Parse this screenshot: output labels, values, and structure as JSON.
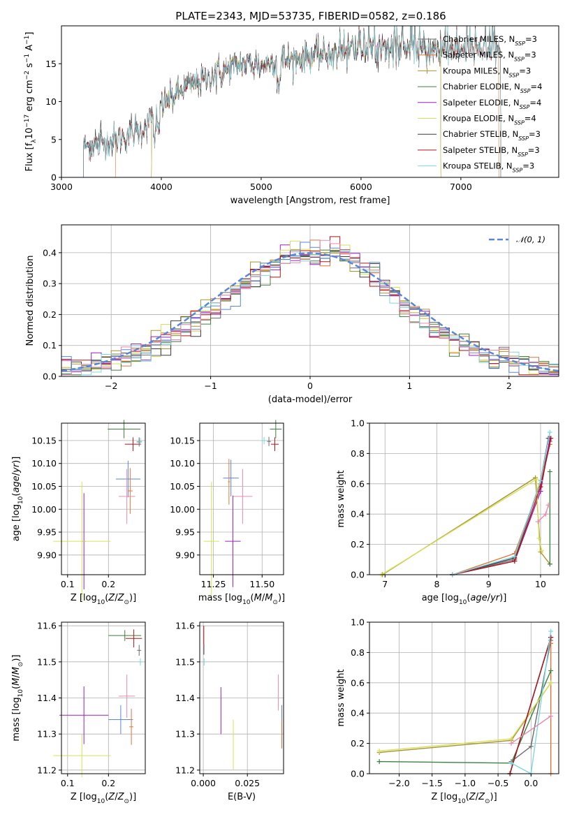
{
  "figure_title": "PLATE=2343, MJD=53735, FIBERID=0582, z=0.186",
  "colors": {
    "Chabrier MILES": "#6b6b6b",
    "Salpeter MILES": "#e0733a",
    "Kroupa MILES": "#a8922e",
    "Chabrier ELODIE": "#3f7f3f",
    "Salpeter ELODIE": "#9a1fbf",
    "Kroupa ELODIE": "#d6e05a",
    "Chabrier STELIB": "#3a3a3a",
    "Salpeter STELIB": "#b01515",
    "Kroupa STELIB": "#7fd6e0",
    "Blue extra": "#5b86d6",
    "Pink extra": "#e88ab0",
    "Normal": "#5b86d6"
  },
  "chart_data": [
    {
      "id": "spectrum",
      "type": "line",
      "title": "PLATE=2343, MJD=53735, FIBERID=0582, z=0.186",
      "xlabel": "wavelength [Angstrom, rest frame]",
      "ylabel": "Flux [f_λ 10^-17 erg cm^-2 s^-1 A^-1]",
      "xlim": [
        3000,
        7980
      ],
      "ylim": [
        0,
        20
      ],
      "xticks": [
        "3000",
        "4000",
        "5000",
        "6000",
        "7000"
      ],
      "yticks": [
        "0",
        "5",
        "10",
        "15"
      ],
      "grid": false,
      "legend": "top-right",
      "legend_entries": [
        "Chabrier MILES, N_SSP=3",
        "Salpeter MILES, N_SSP=3",
        "Kroupa MILES, N_SSP=3",
        "Chabrier ELODIE, N_SSP=4",
        "Salpeter ELODIE, N_SSP=4",
        "Kroupa ELODIE, N_SSP=4",
        "Chabrier STELIB, N_SSP=3",
        "Salpeter STELIB, N_SSP=3",
        "Kroupa STELIB, N_SSP=3"
      ],
      "continuum_x": [
        3220,
        3500,
        3800,
        4000,
        4200,
        4400,
        4600,
        4800,
        5000,
        5200,
        5400,
        5600,
        5800,
        6000,
        6200,
        6400,
        6600,
        6800,
        7000,
        7200,
        7400
      ],
      "continuum_y": [
        4.0,
        4.8,
        6.2,
        9.5,
        11.5,
        12.8,
        14.0,
        15.0,
        14.8,
        15.5,
        15.8,
        16.2,
        16.8,
        17.0,
        17.2,
        17.0,
        16.8,
        16.8,
        16.8,
        16.9,
        16.8
      ]
    },
    {
      "id": "residuals",
      "type": "bar",
      "xlabel": "(data-model)/error",
      "ylabel": "Normed distribution",
      "xlim": [
        -2.5,
        2.5
      ],
      "ylim": [
        0,
        0.49
      ],
      "xticks": [
        "−2",
        "−1",
        "0",
        "1",
        "2"
      ],
      "yticks": [
        "0.0",
        "0.1",
        "0.2",
        "0.3",
        "0.4"
      ],
      "grid": true,
      "legend": "top-right",
      "legend_entries": [
        "𝒩(0, 1)"
      ],
      "bin_width": 0.1
    },
    {
      "id": "age-vs-Z",
      "type": "scatter",
      "xlabel": "Z [log10(Z/Z⊙)]",
      "ylabel": "age [log10(age/yr)]",
      "xlim": [
        0.085,
        0.29
      ],
      "ylim": [
        9.857,
        10.188
      ],
      "xticks": [
        "0.1",
        "0.2"
      ],
      "yticks": [
        "9.90",
        "9.95",
        "10.00",
        "10.05",
        "10.10",
        "10.15"
      ],
      "grid": true,
      "points": [
        {
          "series": "Chabrier ELODIE",
          "x": 0.238,
          "y": 10.175,
          "xerr": 0.04,
          "yerr": 0.02
        },
        {
          "series": "Salpeter STELIB",
          "x": 0.26,
          "y": 10.142,
          "xerr": 0.02,
          "yerr": 0.015
        },
        {
          "series": "Chabrier MILES",
          "x": 0.275,
          "y": 10.147,
          "xerr": 0.006,
          "yerr": 0.01
        },
        {
          "series": "Kroupa STELIB",
          "x": 0.278,
          "y": 10.148,
          "xerr": 0.004,
          "yerr": 0.008
        },
        {
          "series": "Blue extra",
          "x": 0.248,
          "y": 10.066,
          "xerr": 0.03,
          "yerr": 0.04
        },
        {
          "series": "Salpeter MILES",
          "x": 0.253,
          "y": 10.04,
          "xerr": 0.006,
          "yerr": 0.05
        },
        {
          "series": "Pink extra",
          "x": 0.245,
          "y": 10.028,
          "xerr": 0.02,
          "yerr": 0.06
        },
        {
          "series": "Salpeter ELODIE",
          "x": 0.14,
          "y": 9.93,
          "xerr": 0.005,
          "yerr": 0.105
        },
        {
          "series": "Kroupa ELODIE",
          "x": 0.135,
          "y": 9.93,
          "xerr": 0.07,
          "yerr": 0.13
        }
      ]
    },
    {
      "id": "age-vs-mass",
      "type": "scatter",
      "xlabel": "mass [log10(M/M⊙)]",
      "ylabel": "",
      "xlim": [
        11.18,
        11.61
      ],
      "ylim": [
        9.857,
        10.188
      ],
      "xticks": [
        "11.25",
        "11.50"
      ],
      "yticks": [
        "9.90",
        "9.95",
        "10.00",
        "10.05",
        "10.10",
        "10.15"
      ],
      "grid": true,
      "points": [
        {
          "series": "Chabrier ELODIE",
          "x": 11.57,
          "y": 10.175,
          "xerr": 0.03,
          "yerr": 0.02
        },
        {
          "series": "Salpeter STELIB",
          "x": 11.565,
          "y": 10.142,
          "xerr": 0.02,
          "yerr": 0.015
        },
        {
          "series": "Chabrier MILES",
          "x": 11.535,
          "y": 10.148,
          "xerr": 0.01,
          "yerr": 0.01
        },
        {
          "series": "Kroupa STELIB",
          "x": 11.51,
          "y": 10.15,
          "xerr": 0.015,
          "yerr": 0.008
        },
        {
          "series": "Blue extra",
          "x": 11.34,
          "y": 10.068,
          "xerr": 0.04,
          "yerr": 0.04
        },
        {
          "series": "Salpeter MILES",
          "x": 11.33,
          "y": 10.06,
          "xerr": 0.005,
          "yerr": 0.05
        },
        {
          "series": "Pink extra",
          "x": 11.4,
          "y": 10.028,
          "xerr": 0.05,
          "yerr": 0.06
        },
        {
          "series": "Salpeter ELODIE",
          "x": 11.35,
          "y": 9.93,
          "xerr": 0.04,
          "yerr": 0.1
        },
        {
          "series": "Kroupa ELODIE",
          "x": 11.24,
          "y": 9.93,
          "xerr": 0.04,
          "yerr": 0.13
        }
      ]
    },
    {
      "id": "mass-weight-vs-age",
      "type": "line",
      "xlabel": "age [log10(age/yr)]",
      "ylabel": "mass weight",
      "xlim": [
        6.7,
        10.35
      ],
      "ylim": [
        0,
        1.0
      ],
      "xticks": [
        "7",
        "8",
        "9",
        "10"
      ],
      "yticks": [
        "0.0",
        "0.2",
        "0.4",
        "0.6",
        "0.8",
        "1.0"
      ],
      "grid": true,
      "series": [
        {
          "name": "Chabrier MILES",
          "x": [
            8.3,
            9.5,
            10.0,
            10.18
          ],
          "y": [
            0.0,
            0.1,
            0.62,
            0.88
          ]
        },
        {
          "name": "Salpeter MILES",
          "x": [
            8.3,
            9.5,
            10.0,
            10.18
          ],
          "y": [
            0.0,
            0.14,
            0.6,
            0.86
          ]
        },
        {
          "name": "Kroupa MILES",
          "x": [
            6.95,
            9.9,
            10.0,
            10.18
          ],
          "y": [
            0.0,
            0.64,
            0.15,
            0.07
          ]
        },
        {
          "name": "Chabrier ELODIE",
          "x": [
            10.18,
            10.18
          ],
          "y": [
            0.07,
            0.68
          ]
        },
        {
          "name": "Salpeter ELODIE",
          "x": [
            8.3,
            9.5,
            10.0,
            10.18
          ],
          "y": [
            0.0,
            0.09,
            0.55,
            0.9
          ]
        },
        {
          "name": "Kroupa ELODIE",
          "x": [
            6.93,
            9.92,
            9.97,
            10.02
          ],
          "y": [
            0.0,
            0.63,
            0.24,
            0.16
          ]
        },
        {
          "name": "Chabrier STELIB",
          "x": [
            8.3,
            9.5,
            10.0,
            10.15
          ],
          "y": [
            0.0,
            0.11,
            0.62,
            0.9
          ]
        },
        {
          "name": "Salpeter STELIB",
          "x": [
            8.3,
            9.5,
            10.0,
            10.2
          ],
          "y": [
            0.0,
            0.09,
            0.58,
            0.9
          ]
        },
        {
          "name": "Kroupa STELIB",
          "x": [
            8.3,
            9.5,
            10.0,
            10.18
          ],
          "y": [
            0.0,
            0.12,
            0.62,
            0.94
          ]
        },
        {
          "name": "Pink extra",
          "x": [
            9.95,
            10.1,
            10.15
          ],
          "y": [
            0.35,
            0.4,
            0.46
          ]
        }
      ]
    },
    {
      "id": "mass-vs-Z",
      "type": "scatter",
      "xlabel": "Z [log10(Z/Z⊙)]",
      "ylabel": "mass [log10(M/M⊙)]",
      "xlim": [
        0.085,
        0.29
      ],
      "ylim": [
        11.19,
        11.61
      ],
      "xticks": [
        "0.1",
        "0.2"
      ],
      "yticks": [
        "11.2",
        "11.3",
        "11.4",
        "11.5",
        "11.6"
      ],
      "grid": true,
      "points": [
        {
          "series": "Chabrier ELODIE",
          "x": 0.24,
          "y": 11.573,
          "xerr": 0.04,
          "yerr": 0.015
        },
        {
          "series": "Salpeter STELIB",
          "x": 0.262,
          "y": 11.565,
          "xerr": 0.02,
          "yerr": 0.025
        },
        {
          "series": "Chabrier MILES",
          "x": 0.275,
          "y": 11.532,
          "xerr": 0.005,
          "yerr": 0.015
        },
        {
          "series": "Kroupa STELIB",
          "x": 0.278,
          "y": 11.5,
          "xerr": 0.004,
          "yerr": 0.01
        },
        {
          "series": "Pink extra",
          "x": 0.245,
          "y": 11.405,
          "xerr": 0.02,
          "yerr": 0.06
        },
        {
          "series": "Blue extra",
          "x": 0.23,
          "y": 11.34,
          "xerr": 0.03,
          "yerr": 0.04
        },
        {
          "series": "Salpeter MILES",
          "x": 0.256,
          "y": 11.32,
          "xerr": 0.005,
          "yerr": 0.05
        },
        {
          "series": "Salpeter ELODIE",
          "x": 0.14,
          "y": 11.352,
          "xerr": 0.06,
          "yerr": 0.08
        },
        {
          "series": "Kroupa ELODIE",
          "x": 0.135,
          "y": 11.24,
          "xerr": 0.07,
          "yerr": 0.06
        }
      ]
    },
    {
      "id": "mass-vs-ebv",
      "type": "scatter",
      "xlabel": "E(B-V)",
      "ylabel": "",
      "xlim": [
        -0.002,
        0.0455
      ],
      "ylim": [
        11.19,
        11.61
      ],
      "xticks": [
        "0.000",
        "0.025"
      ],
      "yticks": [
        "11.2",
        "11.3",
        "11.4",
        "11.5",
        "11.6"
      ],
      "grid": true,
      "points": [
        {
          "series": "Salpeter STELIB",
          "x": 0.0003,
          "y": 11.56,
          "xerr": 0,
          "yerr": 0.04
        },
        {
          "series": "Chabrier MILES",
          "x": 0.0004,
          "y": 11.535,
          "xerr": 0,
          "yerr": 0.015
        },
        {
          "series": "Kroupa STELIB",
          "x": 0.0005,
          "y": 11.5,
          "xerr": 0,
          "yerr": 0.01
        },
        {
          "series": "Salpeter ELODIE",
          "x": 0.01,
          "y": 11.365,
          "xerr": 0,
          "yerr": 0.065
        },
        {
          "series": "Kroupa ELODIE",
          "x": 0.017,
          "y": 11.27,
          "xerr": 0,
          "yerr": 0.07
        },
        {
          "series": "Pink extra",
          "x": 0.0425,
          "y": 11.415,
          "xerr": 0,
          "yerr": 0.05
        },
        {
          "series": "Blue extra",
          "x": 0.0445,
          "y": 11.35,
          "xerr": 0,
          "yerr": 0.03
        },
        {
          "series": "Salpeter MILES",
          "x": 0.0445,
          "y": 11.3,
          "xerr": 0,
          "yerr": 0.04
        }
      ]
    },
    {
      "id": "mass-weight-vs-Z",
      "type": "line",
      "xlabel": "Z [log10(Z/Z⊙)]",
      "ylabel": "mass weight",
      "xlim": [
        -2.45,
        0.42
      ],
      "ylim": [
        0,
        1.0
      ],
      "xticks": [
        "−2.0",
        "−1.5",
        "−1.0",
        "−0.5",
        "0.0"
      ],
      "yticks": [
        "0.0",
        "0.2",
        "0.4",
        "0.6",
        "0.8",
        "1.0"
      ],
      "grid": true,
      "series": [
        {
          "name": "Chabrier MILES",
          "x": [
            -0.3,
            0.0,
            0.3
          ],
          "y": [
            0.08,
            0.18,
            0.88
          ]
        },
        {
          "name": "Salpeter MILES",
          "x": [
            0.3,
            0.3
          ],
          "y": [
            0.0,
            0.86
          ]
        },
        {
          "name": "Kroupa MILES",
          "x": [
            -2.3,
            -0.3,
            0.3
          ],
          "y": [
            0.14,
            0.22,
            0.6
          ]
        },
        {
          "name": "Chabrier ELODIE",
          "x": [
            -2.3,
            -0.3,
            0.3
          ],
          "y": [
            0.08,
            0.07,
            0.68
          ]
        },
        {
          "name": "Salpeter ELODIE",
          "x": [
            -0.32,
            0.3
          ],
          "y": [
            0.0,
            0.9
          ]
        },
        {
          "name": "Kroupa ELODIE",
          "x": [
            -2.3,
            -0.3,
            0.3
          ],
          "y": [
            0.15,
            0.23,
            0.6
          ]
        },
        {
          "name": "Chabrier STELIB",
          "x": [
            -0.32,
            0.3
          ],
          "y": [
            0.0,
            0.9
          ]
        },
        {
          "name": "Salpeter STELIB",
          "x": [
            -0.32,
            0.3
          ],
          "y": [
            0.0,
            0.9
          ]
        },
        {
          "name": "Kroupa STELIB",
          "x": [
            -0.3,
            0.0,
            0.3
          ],
          "y": [
            0.07,
            0.0,
            0.94
          ]
        },
        {
          "name": "Pink extra",
          "x": [
            -0.3,
            0.3
          ],
          "y": [
            0.2,
            0.38
          ]
        }
      ]
    }
  ]
}
